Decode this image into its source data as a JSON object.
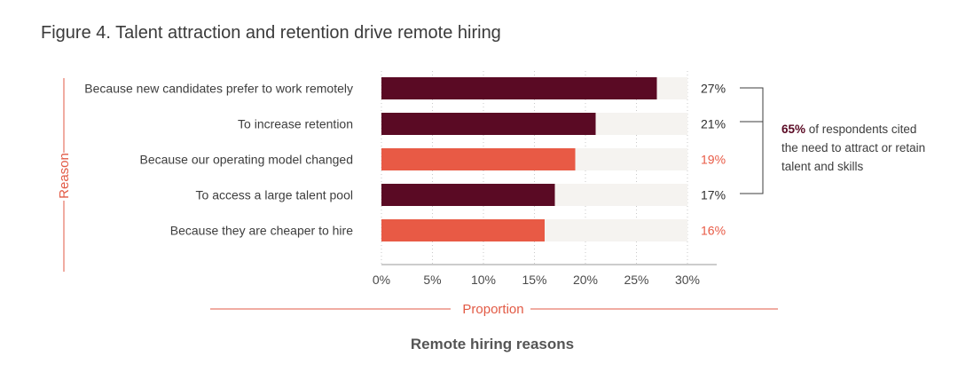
{
  "figure_title": "Figure 4. Talent attraction and retention drive remote hiring",
  "annotation": {
    "highlight": "65%",
    "line1_rest": " of respondents cited",
    "line2": "the need to attract or retain",
    "line3": "talent and skills"
  },
  "colors": {
    "dark": "#5a0a24",
    "accent": "#e85a45",
    "track": "#f5f3f0",
    "axis_title": "#e25a45"
  },
  "chart_data": {
    "type": "bar",
    "orientation": "horizontal",
    "title": "Remote hiring reasons",
    "xlabel": "Proportion",
    "ylabel": "Reason",
    "xlim": [
      0,
      30
    ],
    "xticks": [
      "0%",
      "5%",
      "10%",
      "15%",
      "20%",
      "25%",
      "30%"
    ],
    "categories": [
      "Because new candidates prefer to work remotely",
      "To increase retention",
      "Because our operating model changed",
      "To access a large talent pool",
      "Because they are cheaper to hire"
    ],
    "values": [
      27,
      21,
      19,
      17,
      16
    ],
    "value_labels": [
      "27%",
      "21%",
      "19%",
      "17%",
      "16%"
    ],
    "highlighted": [
      true,
      true,
      false,
      true,
      false
    ],
    "grid": "vertical dotted",
    "legend": "none"
  }
}
